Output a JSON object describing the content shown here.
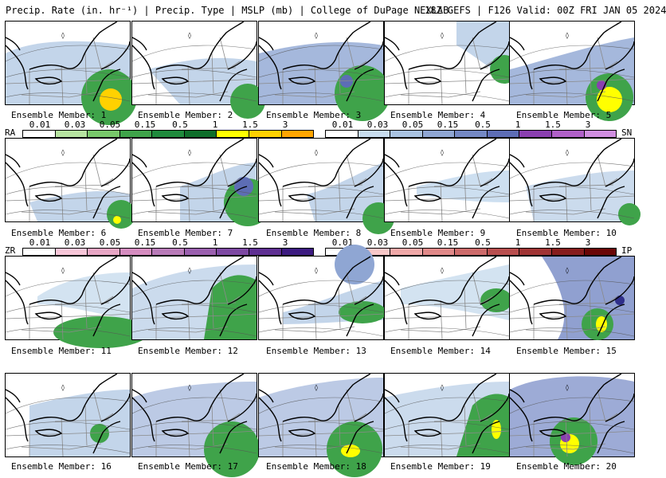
{
  "header": {
    "left": "Precip. Rate (in. hr⁻¹) | Precip. Type | MSLP (mb) | College of DuPage NEXLAB",
    "right": "18Z GEFS | F126 Valid: 00Z FRI JAN 05 2024"
  },
  "members": [
    "Ensemble Member: 1",
    "Ensemble Member: 2",
    "Ensemble Member: 3",
    "Ensemble Member: 4",
    "Ensemble Member: 5",
    "Ensemble Member: 6",
    "Ensemble Member: 7",
    "Ensemble Member: 8",
    "Ensemble Member: 9",
    "Ensemble Member: 10",
    "Ensemble Member: 11",
    "Ensemble Member: 12",
    "Ensemble Member: 13",
    "Ensemble Member: 14",
    "Ensemble Member: 15",
    "Ensemble Member: 16",
    "Ensemble Member: 17",
    "Ensemble Member: 18",
    "Ensemble Member: 19",
    "Ensemble Member: 20"
  ],
  "legends": {
    "ra": {
      "tag": "RA",
      "ticks": [
        "0.01",
        "0.03",
        "0.05",
        "0.15",
        "0.5",
        "1",
        "1.5",
        "3"
      ],
      "colors": [
        "#ffffff",
        "#b6e3a0",
        "#78c86a",
        "#3fa34a",
        "#1f8a3c",
        "#0e6e2a",
        "#ffff00",
        "#ffd100",
        "#ffa500"
      ]
    },
    "sn": {
      "tag": "SN",
      "ticks": [
        "0.01",
        "0.03",
        "0.05",
        "0.15",
        "0.5",
        "1",
        "1.5",
        "3"
      ],
      "colors": [
        "#ffffff",
        "#c8dcee",
        "#a9c3e1",
        "#8fa6d3",
        "#7488c4",
        "#5d6db5",
        "#8a3fb0",
        "#b060c8",
        "#d08ee0"
      ]
    },
    "zr": {
      "tag": "ZR",
      "ticks": [
        "0.01",
        "0.03",
        "0.05",
        "0.15",
        "0.5",
        "1",
        "1.5",
        "3"
      ],
      "colors": [
        "#ffffff",
        "#f7c6d8",
        "#e8a6c5",
        "#d58cc0",
        "#b87ab8",
        "#9a5fae",
        "#7d48a2",
        "#5e2f92",
        "#3c1a80"
      ]
    },
    "ip": {
      "tag": "IP",
      "ticks": [
        "0.01",
        "0.03",
        "0.05",
        "0.15",
        "0.5",
        "1",
        "1.5",
        "3"
      ],
      "colors": [
        "#ffffff",
        "#f8c8c8",
        "#f0a8a8",
        "#e08888",
        "#cc6a6a",
        "#b84e4e",
        "#a03434",
        "#861c1c",
        "#6a0606"
      ]
    }
  }
}
